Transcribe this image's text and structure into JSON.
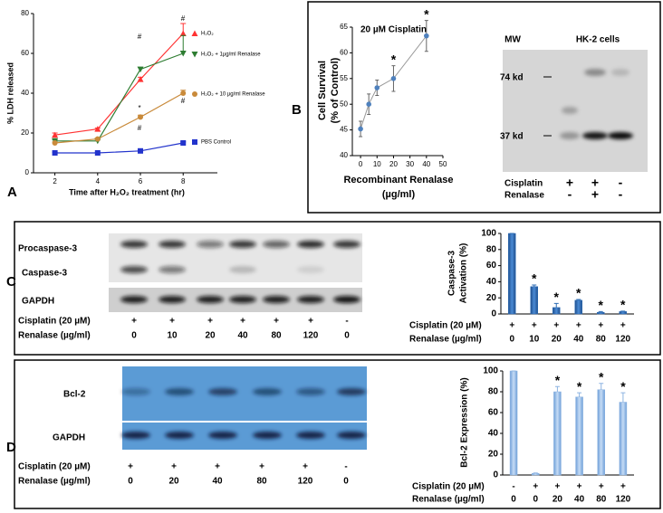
{
  "chart_data": [
    {
      "type": "line",
      "panel": "A",
      "xlabel": "Time after H₂O₂ treatment (hr)",
      "ylabel": "% LDH released",
      "x": [
        2,
        4,
        6,
        8
      ],
      "xlim": [
        1,
        9.6
      ],
      "xticks": [
        2,
        4,
        6,
        8
      ],
      "ylim": [
        0,
        80
      ],
      "yticks": [
        0,
        20,
        40,
        60,
        80
      ],
      "series": [
        {
          "name": "H₂O₂",
          "color": "#ff3333",
          "marker": "triangle-up",
          "values": [
            19,
            22,
            47,
            70
          ],
          "errors": [
            1,
            0.5,
            1,
            5
          ]
        },
        {
          "name": "H₂O₂ + 1µg/ml Renalase",
          "color": "#2e7d32",
          "marker": "triangle-down",
          "values": [
            16,
            16,
            52,
            60
          ],
          "errors": [
            0.5,
            0.5,
            1,
            9
          ]
        },
        {
          "name": "H₂O₂ + 10 µg/ml Renalase",
          "color": "#c98a3a",
          "marker": "circle",
          "values": [
            15,
            17,
            28,
            40
          ],
          "errors": [
            0.5,
            0.5,
            1,
            1.5
          ]
        },
        {
          "name": "PBS Control",
          "color": "#2233cc",
          "marker": "square",
          "values": [
            10,
            10,
            11,
            15
          ],
          "errors": [
            0.3,
            0.3,
            0.3,
            0.5
          ]
        }
      ],
      "annotations": [
        "#",
        "#",
        "*",
        "#",
        "#"
      ]
    },
    {
      "type": "scatter",
      "panel": "B",
      "title": "20 µM Cisplatin",
      "xlabel": [
        "Recombinant Renalase",
        "(µg/ml)"
      ],
      "ylabel": [
        "Cell Survival",
        "(% of Control)"
      ],
      "x": [
        0,
        5,
        10,
        20,
        40
      ],
      "values": [
        45.2,
        50,
        53.2,
        55,
        63.3
      ],
      "errors": [
        1.5,
        2,
        1.5,
        2.5,
        3
      ],
      "color": "#4f81bd",
      "line_color": "#999999",
      "xlim": [
        -5,
        50
      ],
      "xticks": [
        0,
        10,
        20,
        30,
        40,
        50
      ],
      "ylim": [
        40,
        65
      ],
      "yticks": [
        40,
        45,
        50,
        55,
        60,
        65
      ],
      "marks": [
        null,
        null,
        null,
        "*",
        "*"
      ]
    },
    {
      "type": "bar",
      "panel": "C",
      "ylabel": [
        "Caspase-3",
        "Activation (%)"
      ],
      "values": [
        100,
        34,
        8,
        17,
        2,
        3
      ],
      "errors": [
        0,
        2,
        5,
        1,
        1,
        0.5
      ],
      "color": "#2e6db4",
      "ylim": [
        0,
        100
      ],
      "yticks": [
        0,
        20,
        40,
        60,
        80,
        100
      ],
      "marks": [
        null,
        "*",
        "*",
        "*",
        "*",
        "*"
      ],
      "x_label_rows": [
        {
          "label": "Cisplatin (20 µM)",
          "values": [
            "+",
            "+",
            "+",
            "+",
            "+",
            "+"
          ]
        },
        {
          "label": "Renalase (µg/ml)",
          "values": [
            "0",
            "10",
            "20",
            "40",
            "80",
            "120"
          ]
        }
      ]
    },
    {
      "type": "bar",
      "panel": "D",
      "ylabel": [
        "Bcl-2 Expression (%)"
      ],
      "values": [
        100,
        1.5,
        80,
        75,
        82,
        70
      ],
      "errors": [
        0,
        0.5,
        5,
        4,
        6,
        9
      ],
      "color": "#8db4e2",
      "ylim": [
        0,
        100
      ],
      "yticks": [
        0,
        20,
        40,
        60,
        80,
        100
      ],
      "marks": [
        null,
        null,
        "*",
        "*",
        "*",
        "*"
      ],
      "x_label_rows": [
        {
          "label": "Cisplatin (20 µM)",
          "values": [
            "-",
            "+",
            "+",
            "+",
            "+",
            "+"
          ]
        },
        {
          "label": "Renalase (µg/ml)",
          "values": [
            "0",
            "0",
            "20",
            "40",
            "80",
            "120"
          ]
        }
      ]
    }
  ],
  "blots": {
    "B": {
      "mw": "MW",
      "title": "HK-2 cells",
      "markers": [
        "74 kd",
        "37 kd"
      ],
      "rows": [
        {
          "label": "Cisplatin",
          "values": [
            "+",
            "+",
            "-"
          ]
        },
        {
          "label": "Renalase",
          "values": [
            "-",
            "+",
            "-"
          ]
        }
      ]
    },
    "C": {
      "bands": [
        "Procaspase-3",
        "Caspase-3",
        "GAPDH"
      ],
      "rows": [
        {
          "label": "Cisplatin (20 µM)",
          "values": [
            "+",
            "+",
            "+",
            "+",
            "+",
            "+",
            "-"
          ]
        },
        {
          "label": "Renalase (µg/ml)",
          "values": [
            "0",
            "10",
            "20",
            "40",
            "80",
            "120",
            "0"
          ]
        }
      ]
    },
    "D": {
      "bands": [
        "Bcl-2",
        "GAPDH"
      ],
      "rows": [
        {
          "label": "Cisplatin (20 µM)",
          "values": [
            "+",
            "+",
            "+",
            "+",
            "+",
            "-"
          ]
        },
        {
          "label": "Renalase (µg/ml)",
          "values": [
            "0",
            "20",
            "40",
            "80",
            "120",
            "0"
          ]
        }
      ]
    }
  }
}
